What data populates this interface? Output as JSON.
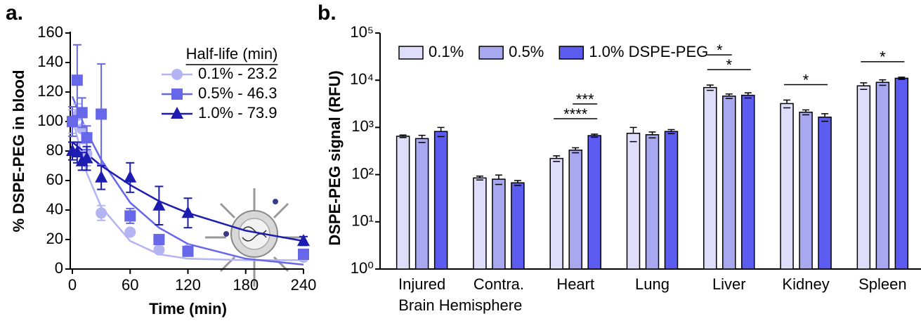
{
  "chart_data": [
    {
      "type": "scatter",
      "panel": "a.",
      "ylabel": "% DSPE-PEG in blood",
      "xlabel": "Time (min)",
      "legend_title": "Half-life (min)",
      "legend": "top-right",
      "xlim": [
        0,
        240
      ],
      "xticks": [
        0,
        60,
        120,
        180,
        240
      ],
      "ylim": [
        0,
        160
      ],
      "yticks": [
        0,
        20,
        40,
        60,
        80,
        100,
        120,
        140,
        160
      ],
      "x": [
        0,
        5,
        10,
        15,
        30,
        60,
        90,
        120,
        240
      ],
      "series": [
        {
          "name": "0.1% - 23.2",
          "color": "#b4b4f2",
          "marker": "circle",
          "values": [
            100,
            104,
            95,
            78,
            38,
            25,
            13,
            13,
            8
          ],
          "errors": [
            8,
            8,
            10,
            8,
            5,
            2,
            2,
            2,
            2
          ],
          "fit": {
            "x": [
              0,
              15,
              30,
              60,
              90,
              120,
              180,
              240
            ],
            "y": [
              102,
              65,
              42,
              19,
              10,
              7,
              6,
              6
            ]
          }
        },
        {
          "name": "0.5% - 46.3",
          "color": "#6767ea",
          "marker": "square",
          "values": [
            100,
            128,
            106,
            89,
            105,
            36,
            20,
            12,
            10
          ],
          "errors": [
            10,
            24,
            10,
            8,
            34,
            5,
            3,
            3,
            3
          ],
          "fit": {
            "x": [
              0,
              15,
              30,
              60,
              90,
              120,
              180,
              240
            ],
            "y": [
              117,
              93,
              74,
              45,
              28,
              17,
              7,
              3
            ]
          }
        },
        {
          "name": "1.0% - 73.9",
          "color": "#1c1cb0",
          "marker": "triangle",
          "values": [
            80,
            79,
            73,
            75,
            62,
            62,
            43,
            38,
            19
          ],
          "errors": [
            6,
            7,
            6,
            8,
            8,
            10,
            13,
            10,
            3
          ],
          "fit": {
            "x": [
              0,
              15,
              30,
              60,
              90,
              120,
              180,
              240
            ],
            "y": [
              86,
              78,
              70,
              57,
              46,
              38,
              26,
              19
            ]
          }
        }
      ]
    },
    {
      "type": "bar",
      "panel": "b.",
      "ylabel": "DSPE-PEG signal (RFU)",
      "log_scale": true,
      "legend": "top-left",
      "categories": [
        "Injured",
        "Contra.",
        "Heart",
        "Lung",
        "Liver",
        "Kidney",
        "Spleen"
      ],
      "category_group_label": "Brain Hemisphere",
      "ylim": [
        1,
        100000
      ],
      "yticks": [
        {
          "value": 1,
          "label": "10⁰"
        },
        {
          "value": 10,
          "label": "10¹"
        },
        {
          "value": 100,
          "label": "10²"
        },
        {
          "value": 1000,
          "label": "10³"
        },
        {
          "value": 10000,
          "label": "10⁴"
        },
        {
          "value": 100000,
          "label": "10⁵"
        }
      ],
      "series": [
        {
          "name": "0.1%",
          "color": "#dedefb",
          "values": [
            650,
            85,
            220,
            750,
            7000,
            3200,
            7600
          ],
          "errors": [
            40,
            8,
            30,
            250,
            900,
            600,
            1200
          ]
        },
        {
          "name": "0.5%",
          "color": "#a8a8f0",
          "values": [
            580,
            80,
            330,
            700,
            4600,
            2100,
            9000
          ],
          "errors": [
            100,
            18,
            40,
            100,
            500,
            250,
            1200
          ]
        },
        {
          "name": "1.0% DSPE-PEG",
          "color": "#5c5cf0",
          "values": [
            820,
            67,
            670,
            820,
            4800,
            1650,
            11000
          ],
          "errors": [
            180,
            8,
            50,
            80,
            600,
            300,
            600
          ]
        }
      ],
      "annotations": [
        {
          "category": 2,
          "series": [
            0,
            2
          ],
          "label": "****"
        },
        {
          "category": 2,
          "series": [
            1,
            2
          ],
          "label": "***"
        },
        {
          "category": 4,
          "series": [
            0,
            2
          ],
          "label": "*"
        },
        {
          "category": 4,
          "series": [
            0,
            1
          ],
          "label": "*"
        },
        {
          "category": 5,
          "series": [
            0,
            2
          ],
          "label": "*"
        },
        {
          "category": 6,
          "series": [
            0,
            2
          ],
          "label": "*"
        }
      ]
    }
  ]
}
